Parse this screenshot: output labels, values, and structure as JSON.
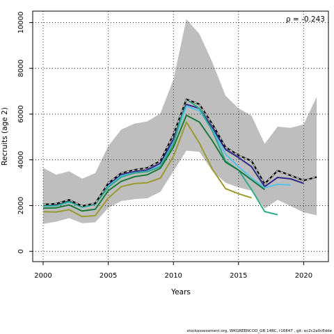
{
  "chart_data": {
    "type": "line",
    "xlabel": "Years",
    "ylabel": "Recruits (age 2)",
    "xlim": [
      1999.2,
      2021.9
    ],
    "ylim": [
      -450,
      10500
    ],
    "xticks": [
      2000,
      2005,
      2010,
      2015,
      2020
    ],
    "yticks": [
      0,
      2000,
      4000,
      6000,
      8000,
      10000
    ],
    "grid": "dotted",
    "annotation": "ρ = -0.243",
    "band": {
      "x": [
        2000,
        2001,
        2002,
        2003,
        2004,
        2005,
        2006,
        2007,
        2008,
        2009,
        2010,
        2011,
        2012,
        2013,
        2014,
        2015,
        2016,
        2017,
        2018,
        2019,
        2020,
        2021
      ],
      "upper": [
        3650,
        3350,
        3500,
        3180,
        3420,
        4600,
        5320,
        5580,
        5680,
        6030,
        7500,
        10150,
        9500,
        8250,
        6800,
        6250,
        5930,
        4700,
        5450,
        5400,
        5550,
        6750
      ],
      "lower": [
        1200,
        1300,
        1450,
        1230,
        1270,
        1900,
        2200,
        2280,
        2320,
        2600,
        3500,
        4400,
        4350,
        3500,
        3000,
        2800,
        2650,
        1870,
        2250,
        1980,
        1700,
        1580
      ]
    },
    "series": [
      {
        "x": [
          2000,
          2001,
          2002,
          2003,
          2004,
          2005,
          2006,
          2007,
          2008,
          2009,
          2010,
          2011,
          2012,
          2013,
          2014,
          2015,
          2016,
          2017,
          2018,
          2019,
          2020,
          2021
        ],
        "values": [
          2050,
          2080,
          2250,
          1980,
          2100,
          2980,
          3420,
          3560,
          3650,
          3950,
          5100,
          6650,
          6430,
          5550,
          4550,
          4200,
          3950,
          2950,
          3530,
          3320,
          3100,
          3250
        ],
        "color": "#000000",
        "style": "dashed-white-overlay"
      },
      {
        "x": [
          2000,
          2001,
          2002,
          2003,
          2004,
          2005,
          2006,
          2007,
          2008,
          2009,
          2010,
          2011,
          2012,
          2013,
          2014,
          2015,
          2016,
          2017,
          2018,
          2019,
          2020
        ],
        "values": [
          2000,
          2030,
          2200,
          1950,
          2070,
          2900,
          3350,
          3480,
          3560,
          3850,
          4900,
          6420,
          6250,
          5400,
          4450,
          4100,
          3700,
          2830,
          3230,
          3170,
          2970
        ],
        "color": "#2d2a8a"
      },
      {
        "x": [
          2000,
          2001,
          2002,
          2003,
          2004,
          2005,
          2006,
          2007,
          2008,
          2009,
          2010,
          2011,
          2012,
          2013,
          2014,
          2015,
          2016,
          2017,
          2018,
          2019
        ],
        "values": [
          1970,
          1990,
          2150,
          1920,
          2050,
          2850,
          3300,
          3430,
          3500,
          3750,
          4750,
          6350,
          6150,
          5300,
          4250,
          3700,
          3200,
          2780,
          2930,
          2900
        ],
        "color": "#55c0e8"
      },
      {
        "x": [
          2000,
          2001,
          2002,
          2003,
          2004,
          2005,
          2006,
          2007,
          2008,
          2009,
          2010,
          2011,
          2012,
          2013,
          2014,
          2015,
          2016,
          2017,
          2018
        ],
        "values": [
          1990,
          2000,
          2170,
          1940,
          2060,
          2800,
          3250,
          3420,
          3480,
          3700,
          4700,
          6650,
          6250,
          5250,
          3950,
          3550,
          2700,
          1740,
          1600
        ],
        "color": "#2fa98a"
      },
      {
        "x": [
          2000,
          2001,
          2002,
          2003,
          2004,
          2005,
          2006,
          2007,
          2008,
          2009,
          2010,
          2011,
          2012,
          2013,
          2014,
          2015,
          2016,
          2017
        ],
        "values": [
          1890,
          1900,
          2030,
          1760,
          1840,
          2650,
          3060,
          3260,
          3350,
          3630,
          4550,
          5950,
          5650,
          4820,
          3900,
          3550,
          3120,
          2700
        ],
        "color": "#1a7a38"
      },
      {
        "x": [
          2000,
          2001,
          2002,
          2003,
          2004,
          2005,
          2006,
          2007,
          2008,
          2009,
          2010,
          2011,
          2012,
          2013,
          2014,
          2015,
          2016
        ],
        "values": [
          1730,
          1720,
          1820,
          1520,
          1560,
          2330,
          2830,
          2960,
          3000,
          3200,
          4150,
          5650,
          4730,
          3580,
          2740,
          2520,
          2340
        ],
        "color": "#9a9a2e"
      }
    ]
  },
  "footer": "stockassessment.org, WKGREENCOD_GR 14BC, r16847 , git: ec2c2a0c6dde"
}
